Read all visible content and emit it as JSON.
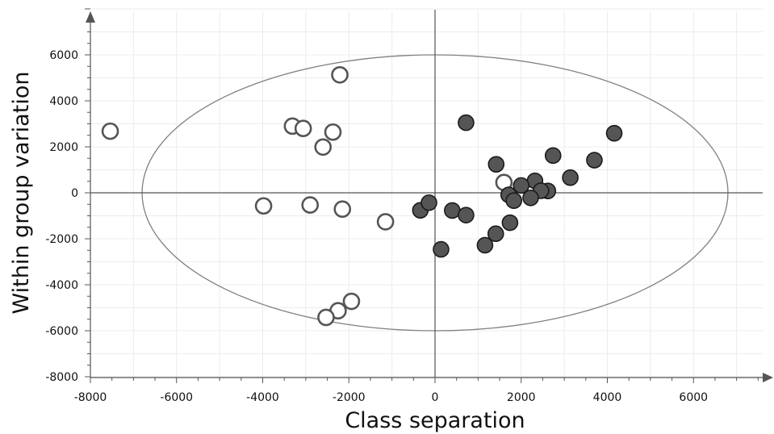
{
  "chart_data": {
    "type": "scatter",
    "title": "",
    "xlabel": "Class separation",
    "ylabel": "Within group variation",
    "xlim": [
      -8000,
      8000
    ],
    "ylim": [
      -8000,
      8000
    ],
    "x_ticks": [
      -8000,
      -6000,
      -4000,
      -2000,
      0,
      2000,
      4000,
      6000
    ],
    "y_ticks": [
      -8000,
      -6000,
      -4000,
      -2000,
      0,
      2000,
      4000,
      6000
    ],
    "grid": true,
    "ellipse": {
      "cx": 0,
      "cy": 0,
      "rx": 6800,
      "ry": 6000,
      "color": "#808080"
    },
    "series": [
      {
        "marker": "open-circle",
        "color": "#555555",
        "points": [
          [
            -7540,
            2680
          ],
          [
            -2210,
            5130
          ],
          [
            -3310,
            2900
          ],
          [
            -3060,
            2800
          ],
          [
            -2370,
            2640
          ],
          [
            -2600,
            1990
          ],
          [
            -3980,
            -570
          ],
          [
            -2900,
            -530
          ],
          [
            -2150,
            -710
          ],
          [
            -1150,
            -1260
          ],
          [
            1600,
            450
          ],
          [
            -1940,
            -4720
          ],
          [
            -2250,
            -5130
          ],
          [
            -2530,
            -5420
          ]
        ]
      },
      {
        "marker": "filled-circle",
        "color": "#555555",
        "points": [
          [
            720,
            3050
          ],
          [
            4160,
            2590
          ],
          [
            1420,
            1240
          ],
          [
            2740,
            1620
          ],
          [
            3700,
            1420
          ],
          [
            3140,
            660
          ],
          [
            2320,
            520
          ],
          [
            2000,
            320
          ],
          [
            1710,
            -90
          ],
          [
            2620,
            80
          ],
          [
            2460,
            90
          ],
          [
            2220,
            -220
          ],
          [
            1830,
            -340
          ],
          [
            -340,
            -760
          ],
          [
            -140,
            -430
          ],
          [
            400,
            -770
          ],
          [
            720,
            -970
          ],
          [
            1740,
            -1300
          ],
          [
            1410,
            -1780
          ],
          [
            1160,
            -2280
          ],
          [
            140,
            -2460
          ]
        ]
      }
    ]
  }
}
